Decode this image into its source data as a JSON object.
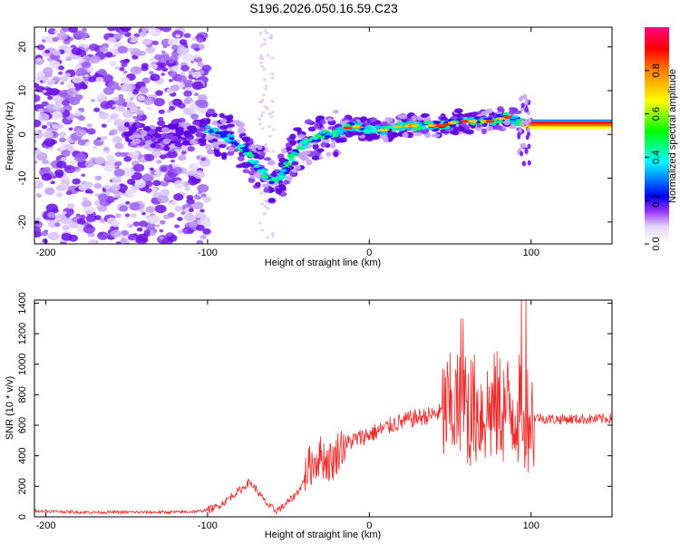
{
  "page_title": "S196.2026.050.16.59.C23",
  "chart_data": [
    {
      "type": "heatmap",
      "title": "S196.2026.050.16.59.C23",
      "xlabel": "Height of straight line (km)",
      "ylabel": "Frequency (Hz)",
      "xlim": [
        -207,
        150
      ],
      "ylim": [
        -25,
        24.5
      ],
      "x_ticks": [
        -200,
        -100,
        0,
        100
      ],
      "y_ticks": [
        -20,
        -10,
        0,
        10,
        20
      ],
      "colorbar": {
        "label": "Normalized spectral amplitude",
        "range": [
          0,
          1
        ],
        "ticks": [
          "0.0",
          "0.2",
          "0.4",
          "0.6",
          "0.8"
        ],
        "colors": [
          "#ffffff",
          "#c8a8f8",
          "#7f00ff",
          "#0000ff",
          "#00ffff",
          "#00ff00",
          "#ffff00",
          "#ff7f00",
          "#ff0000",
          "#ff0080"
        ]
      },
      "ridge_line": {
        "x": [
          -145,
          -130,
          -115,
          -100,
          -92,
          -85,
          -78,
          -72,
          -65,
          -58,
          -52,
          -46,
          -40,
          -34,
          -28,
          -22,
          -16,
          -10,
          0,
          10,
          20,
          30,
          45,
          55,
          65,
          75,
          85,
          92,
          100,
          110,
          120,
          135,
          150
        ],
        "y": [
          0,
          -1,
          0,
          1,
          0,
          -1,
          -3,
          -6,
          -9,
          -11,
          -8,
          -4,
          -2,
          -1,
          0,
          0,
          1,
          2,
          1,
          1,
          2,
          2,
          2,
          3,
          3,
          3,
          4,
          3,
          2.5,
          2.5,
          2.5,
          2.5,
          2.5
        ]
      }
    },
    {
      "type": "line",
      "xlabel": "Height of straight line (km)",
      "ylabel": "SNR (10 * v/v)",
      "xlim": [
        -207,
        150
      ],
      "ylim": [
        0,
        1420
      ],
      "x_ticks": [
        -200,
        -100,
        0,
        100
      ],
      "y_ticks": [
        0,
        200,
        400,
        600,
        800,
        1000,
        1200,
        1400
      ],
      "line_color": "#ee2a2a",
      "series": [
        {
          "name": "SNR",
          "x": [
            -207,
            -180,
            -150,
            -120,
            -105,
            -95,
            -88,
            -82,
            -78,
            -74,
            -70,
            -66,
            -62,
            -58,
            -54,
            -50,
            -46,
            -42,
            -38,
            -34,
            -30,
            -26,
            -22,
            -18,
            -14,
            -10,
            -5,
            0,
            5,
            10,
            15,
            20,
            25,
            30,
            35,
            40,
            45,
            50,
            55,
            60,
            65,
            70,
            75,
            80,
            85,
            90,
            95,
            100,
            105,
            110,
            120,
            130,
            140,
            150
          ],
          "y": [
            40,
            30,
            30,
            30,
            35,
            60,
            110,
            160,
            190,
            230,
            180,
            120,
            70,
            40,
            60,
            100,
            140,
            200,
            320,
            360,
            400,
            360,
            370,
            460,
            480,
            500,
            520,
            540,
            560,
            580,
            610,
            620,
            640,
            650,
            660,
            670,
            690,
            700,
            720,
            700,
            700,
            690,
            700,
            720,
            700,
            710,
            690,
            650,
            650,
            640,
            640,
            640,
            640,
            645
          ]
        }
      ]
    }
  ]
}
